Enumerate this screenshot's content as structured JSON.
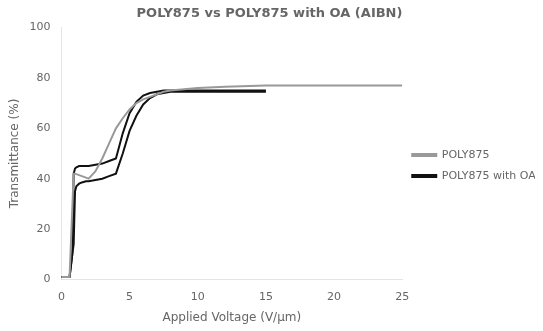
{
  "chart_data": {
    "type": "line",
    "title": "POLY875 vs POLY875 with OA (AIBN)",
    "x_label": "Applied Voltage (V/μm)",
    "y_label": "Transmittance (%)",
    "xlim": [
      0,
      25
    ],
    "ylim": [
      0,
      100
    ],
    "xticks": [
      0,
      5,
      10,
      15,
      20,
      25
    ],
    "yticks": [
      0,
      20,
      40,
      60,
      80,
      100
    ],
    "grid": false,
    "legend": "right",
    "series": [
      {
        "name": "POLY875",
        "color": "#999999",
        "x": [
          0.0,
          0.3,
          0.6,
          0.9,
          1.0,
          1.5,
          2.0,
          2.5,
          3.0,
          3.5,
          4.0,
          4.5,
          5.0,
          5.5,
          6.0,
          6.5,
          7.0,
          7.5,
          8.0,
          9.0,
          10.0,
          12.0,
          15.0,
          20.0,
          25.0
        ],
        "values": [
          1.0,
          1.0,
          1.0,
          42.0,
          42.0,
          41.0,
          40.0,
          43.0,
          48.0,
          54.0,
          60.0,
          64.0,
          67.5,
          70.0,
          71.5,
          72.5,
          73.5,
          74.5,
          75.0,
          75.5,
          76.0,
          76.5,
          77.0,
          77.0,
          77.0
        ]
      },
      {
        "name": "POLY875 with OA",
        "color": "#111111",
        "x": [
          0.0,
          0.3,
          0.6,
          0.8,
          0.9,
          1.0,
          1.1,
          1.3,
          1.5,
          1.8,
          2.0,
          2.5,
          3.0,
          3.5,
          4.0,
          4.5,
          5.0,
          5.5,
          6.0,
          6.5,
          7.0,
          7.5,
          8.0,
          9.0,
          10.0,
          12.0,
          15.0
        ],
        "values": [
          1.0,
          1.0,
          1.0,
          10.0,
          42.0,
          44.0,
          44.5,
          45.0,
          45.0,
          45.0,
          45.0,
          45.5,
          46.0,
          47.0,
          48.0,
          58.0,
          66.0,
          70.5,
          73.0,
          74.0,
          74.5,
          75.0,
          75.0,
          75.0,
          75.0,
          75.0,
          75.0
        ]
      },
      {
        "color": "#111111",
        "x": [
          0.0,
          0.3,
          0.6,
          0.8,
          0.9,
          1.0,
          1.1,
          1.3,
          1.5,
          1.8,
          2.0,
          2.5,
          3.0,
          3.5,
          4.0,
          4.5,
          5.0,
          5.5,
          6.0,
          6.5,
          7.0,
          7.5,
          8.0,
          9.0,
          10.0,
          12.0,
          15.0
        ],
        "values": [
          1.0,
          1.0,
          1.0,
          10.0,
          14.0,
          35.0,
          37.0,
          38.0,
          38.5,
          39.0,
          39.0,
          39.5,
          40.0,
          41.0,
          42.0,
          50.0,
          59.0,
          65.0,
          69.5,
          72.0,
          73.5,
          74.0,
          74.5,
          74.5,
          74.5,
          74.5,
          74.5
        ]
      }
    ]
  }
}
